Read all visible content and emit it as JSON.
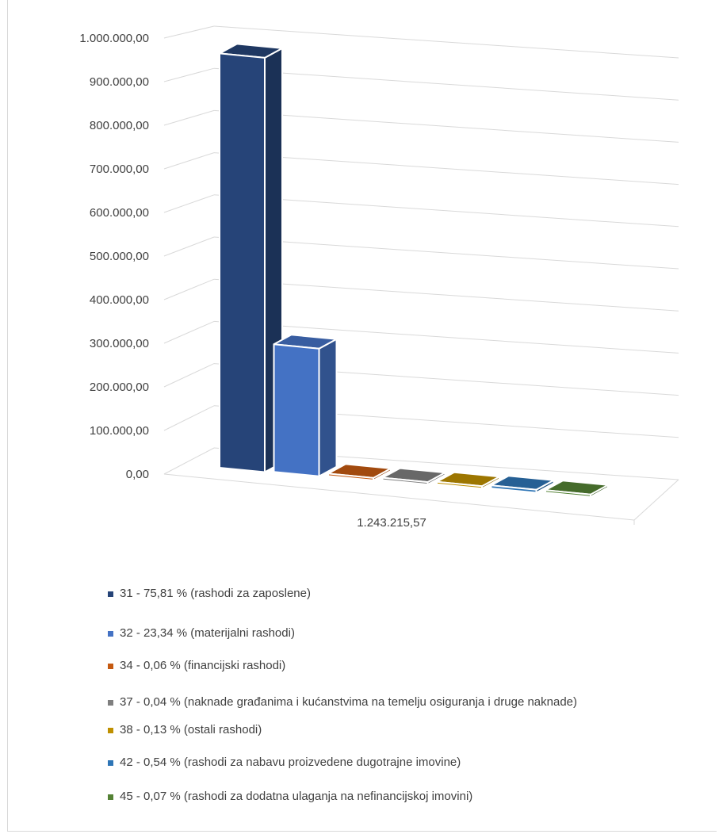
{
  "chart_data": {
    "type": "bar",
    "variant": "3d-clustered-column",
    "categories": [
      "1.243.215,57"
    ],
    "ylim": [
      0,
      1000000
    ],
    "y_ticks": [
      "0,00",
      "100.000,00",
      "200.000,00",
      "300.000,00",
      "400.000,00",
      "500.000,00",
      "600.000,00",
      "700.000,00",
      "800.000,00",
      "900.000,00",
      "1.000.000,00"
    ],
    "grid": true,
    "legend_position": "bottom",
    "series": [
      {
        "name": "31 - 75,81 % (rashodi za zaposlene)",
        "values": [
          942500
        ],
        "color": "#264478"
      },
      {
        "name": "32 - 23,34 % (materijalni rashodi)",
        "values": [
          290200
        ],
        "color": "#4472C4"
      },
      {
        "name": "34 - 0,06 % (financijski rashodi)",
        "values": [
          750
        ],
        "color": "#C55A11"
      },
      {
        "name": "37 - 0,04 % (naknade građanima i kućanstvima na temelju osiguranja i druge naknade)",
        "values": [
          500
        ],
        "color": "#7F7F7F"
      },
      {
        "name": "38 - 0,13 % (ostali rashodi)",
        "values": [
          1600
        ],
        "color": "#BF9000"
      },
      {
        "name": "42 - 0,54 % (rashodi za nabavu proizvedene dugotrajne imovine)",
        "values": [
          6700
        ],
        "color": "#2E75B6"
      },
      {
        "name": "45 - 0,07 % (rashodi za dodatna ulaganja na nefinancijskoj imovini)",
        "values": [
          870
        ],
        "color": "#548235"
      }
    ]
  }
}
